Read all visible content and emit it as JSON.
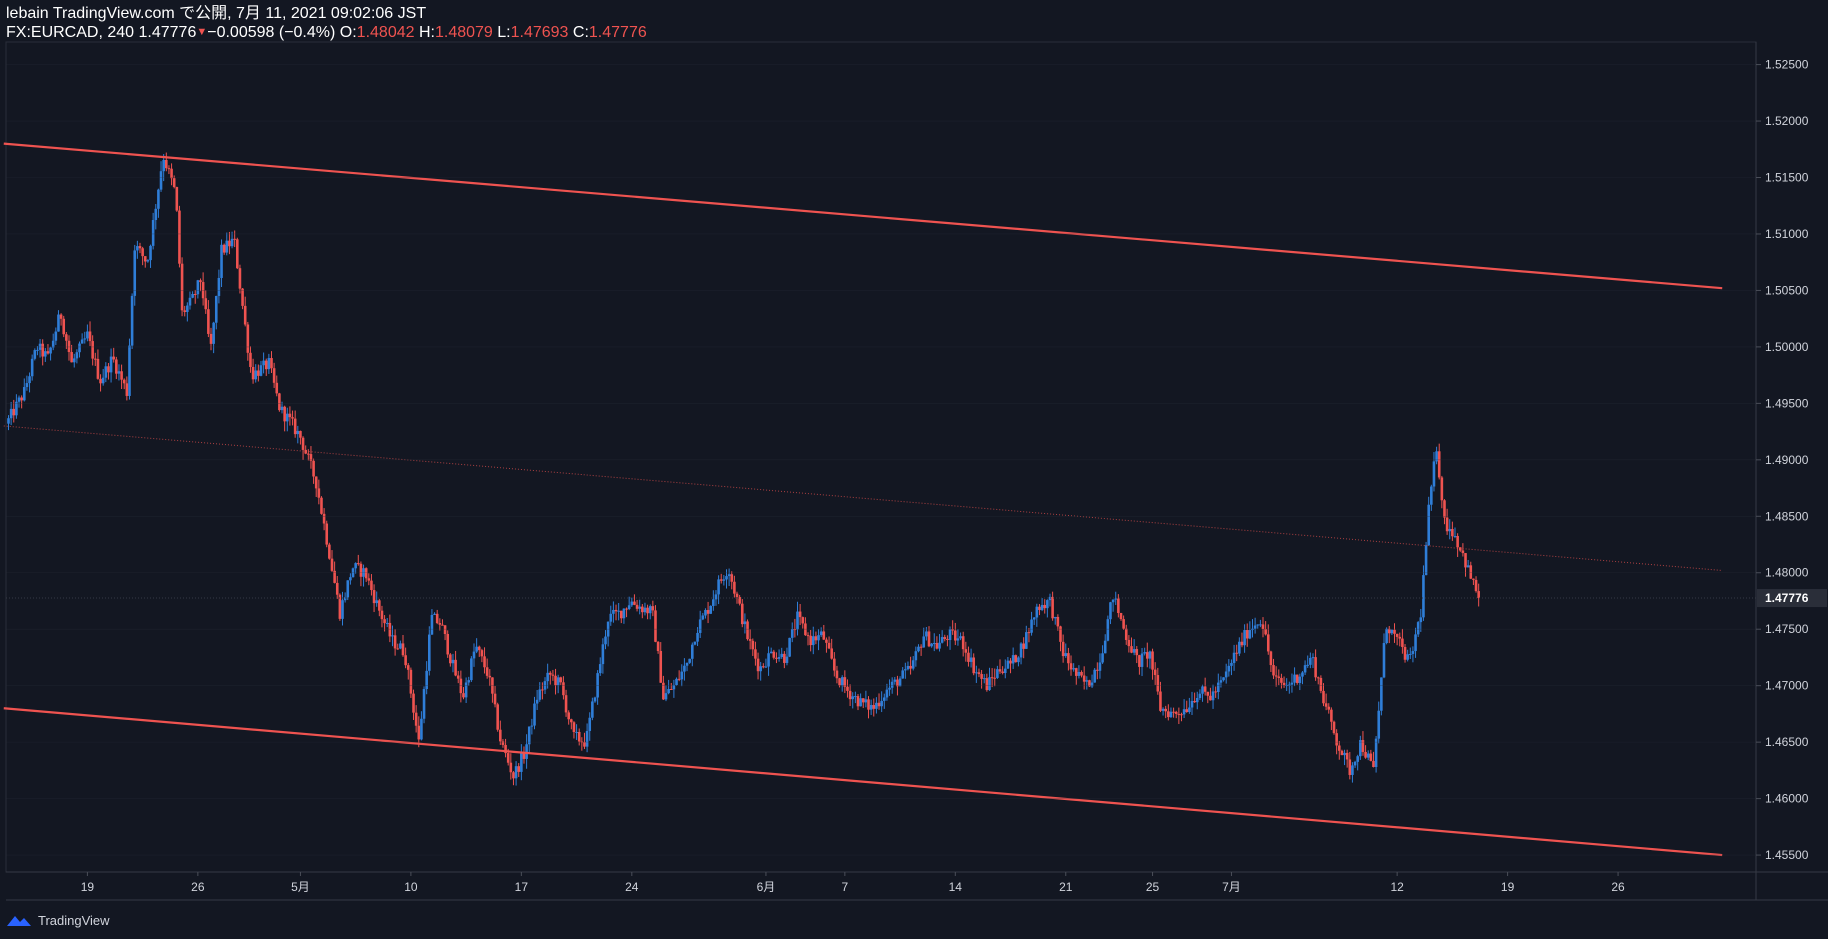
{
  "header": {
    "line1": "lebain TradingView.com で公開, 7月 11, 2021 09:02:06 JST",
    "symbol": "FX:EURCAD, 240",
    "last": "1.47776",
    "change": "−0.00598 (−0.4%)",
    "o_label": "O:",
    "o_value": "1.48042",
    "h_label": "H:",
    "h_value": "1.48079",
    "l_label": "L:",
    "l_value": "1.47693",
    "c_label": "C:",
    "c_value": "1.47776"
  },
  "footer": {
    "brand": "TradingView"
  },
  "colors": {
    "background": "#131722",
    "up": "#2f7ed8",
    "down": "#ef5350",
    "channel": "#ef5350",
    "grid": "#2a2e39",
    "axis_text": "#d1d4dc"
  },
  "chart_data": {
    "type": "candlestick",
    "symbol": "FX:EURCAD",
    "interval": "240",
    "y_axis": {
      "range": [
        1.4535,
        1.527
      ],
      "ticks": [
        "1.52500",
        "1.52000",
        "1.51500",
        "1.51000",
        "1.50500",
        "1.50000",
        "1.49500",
        "1.49000",
        "1.48500",
        "1.48000",
        "1.47500",
        "1.47000",
        "1.46500",
        "1.46000",
        "1.45500"
      ],
      "current_price_label": "1.47776",
      "current_price": 1.47776
    },
    "x_axis": {
      "labels": [
        "19",
        "26",
        "5月",
        "10",
        "17",
        "24",
        "6月",
        "7",
        "14",
        "21",
        "25",
        "7月",
        "12",
        "19",
        "26"
      ],
      "label_days": [
        5,
        12,
        18.5,
        25.5,
        32.5,
        39.5,
        48,
        53,
        60,
        67,
        72.5,
        77.5,
        88,
        95,
        102
      ]
    },
    "close_path": [
      [
        0,
        1.4935
      ],
      [
        1,
        1.496
      ],
      [
        1.8,
        1.5
      ],
      [
        2.5,
        1.499
      ],
      [
        3.3,
        1.503
      ],
      [
        4,
        1.4985
      ],
      [
        5,
        1.501
      ],
      [
        5.8,
        1.497
      ],
      [
        6.6,
        1.499
      ],
      [
        7.5,
        1.496
      ],
      [
        8,
        1.509
      ],
      [
        8.8,
        1.5075
      ],
      [
        9.8,
        1.517
      ],
      [
        10.6,
        1.5135
      ],
      [
        11,
        1.503
      ],
      [
        11.6,
        1.504
      ],
      [
        12.2,
        1.506
      ],
      [
        12.8,
        1.4995
      ],
      [
        13.5,
        1.5085
      ],
      [
        14.3,
        1.5095
      ],
      [
        14.8,
        1.504
      ],
      [
        15.4,
        1.4975
      ],
      [
        16.5,
        1.4985
      ],
      [
        17.2,
        1.4945
      ],
      [
        17.8,
        1.4935
      ],
      [
        18.5,
        1.492
      ],
      [
        19.5,
        1.488
      ],
      [
        20.3,
        1.482
      ],
      [
        21,
        1.4765
      ],
      [
        21.8,
        1.4805
      ],
      [
        22.6,
        1.48
      ],
      [
        23.4,
        1.477
      ],
      [
        24.3,
        1.474
      ],
      [
        25.1,
        1.473
      ],
      [
        26,
        1.465
      ],
      [
        26.8,
        1.476
      ],
      [
        27.4,
        1.4755
      ],
      [
        28.1,
        1.472
      ],
      [
        28.8,
        1.469
      ],
      [
        29.6,
        1.4735
      ],
      [
        30.4,
        1.471
      ],
      [
        31.2,
        1.465
      ],
      [
        32,
        1.462
      ],
      [
        32.7,
        1.464
      ],
      [
        33.5,
        1.469
      ],
      [
        34.3,
        1.471
      ],
      [
        35,
        1.47
      ],
      [
        35.8,
        1.4655
      ],
      [
        36.6,
        1.465
      ],
      [
        37.3,
        1.4705
      ],
      [
        38,
        1.476
      ],
      [
        38.8,
        1.4765
      ],
      [
        39.4,
        1.4775
      ],
      [
        40,
        1.477
      ],
      [
        40.8,
        1.4765
      ],
      [
        41.5,
        1.469
      ],
      [
        42.2,
        1.47
      ],
      [
        43,
        1.472
      ],
      [
        43.6,
        1.475
      ],
      [
        44.4,
        1.477
      ],
      [
        45,
        1.479
      ],
      [
        45.6,
        1.4805
      ],
      [
        46.2,
        1.4775
      ],
      [
        46.9,
        1.474
      ],
      [
        47.6,
        1.4715
      ],
      [
        48.4,
        1.473
      ],
      [
        49.2,
        1.4725
      ],
      [
        50,
        1.476
      ],
      [
        50.8,
        1.474
      ],
      [
        51.6,
        1.4745
      ],
      [
        52.4,
        1.471
      ],
      [
        53.2,
        1.4695
      ],
      [
        54,
        1.4685
      ],
      [
        54.8,
        1.468
      ],
      [
        55.6,
        1.4695
      ],
      [
        56.4,
        1.4705
      ],
      [
        57.2,
        1.4715
      ],
      [
        58,
        1.4745
      ],
      [
        58.8,
        1.4735
      ],
      [
        59.6,
        1.4745
      ],
      [
        60.4,
        1.474
      ],
      [
        61.2,
        1.4715
      ],
      [
        62,
        1.47
      ],
      [
        62.8,
        1.4715
      ],
      [
        63.6,
        1.472
      ],
      [
        64.4,
        1.474
      ],
      [
        65.2,
        1.477
      ],
      [
        66,
        1.4775
      ],
      [
        66.8,
        1.473
      ],
      [
        67.6,
        1.471
      ],
      [
        68.4,
        1.47
      ],
      [
        69.2,
        1.4725
      ],
      [
        70,
        1.478
      ],
      [
        70.8,
        1.4745
      ],
      [
        71.6,
        1.472
      ],
      [
        72.3,
        1.473
      ],
      [
        73,
        1.468
      ],
      [
        73.8,
        1.4675
      ],
      [
        74.6,
        1.468
      ],
      [
        75.4,
        1.4695
      ],
      [
        76.2,
        1.469
      ],
      [
        77,
        1.4705
      ],
      [
        77.8,
        1.473
      ],
      [
        78.6,
        1.475
      ],
      [
        79.4,
        1.476
      ],
      [
        80.2,
        1.4705
      ],
      [
        81,
        1.47
      ],
      [
        81.8,
        1.471
      ],
      [
        82.6,
        1.4725
      ],
      [
        83.4,
        1.4685
      ],
      [
        84.2,
        1.465
      ],
      [
        85,
        1.4625
      ],
      [
        85.7,
        1.465
      ],
      [
        86.5,
        1.4625
      ],
      [
        87.3,
        1.4755
      ],
      [
        88,
        1.474
      ],
      [
        88.8,
        1.472
      ],
      [
        89.5,
        1.4765
      ],
      [
        90,
        1.4855
      ],
      [
        90.5,
        1.4912
      ],
      [
        91,
        1.4845
      ],
      [
        91.6,
        1.4835
      ],
      [
        92.2,
        1.4815
      ],
      [
        92.8,
        1.479
      ],
      [
        93.3,
        1.47776
      ]
    ],
    "channel_lines": [
      {
        "name": "upper",
        "points": [
          [
            -0.3,
            1.518
          ],
          [
            108.6,
            1.5052
          ]
        ]
      },
      {
        "name": "midline",
        "points": [
          [
            -0.3,
            1.493
          ],
          [
            108.6,
            1.4802
          ]
        ],
        "style": "dotted"
      },
      {
        "name": "lower",
        "points": [
          [
            -0.3,
            1.468
          ],
          [
            108.6,
            1.455
          ]
        ]
      }
    ]
  }
}
